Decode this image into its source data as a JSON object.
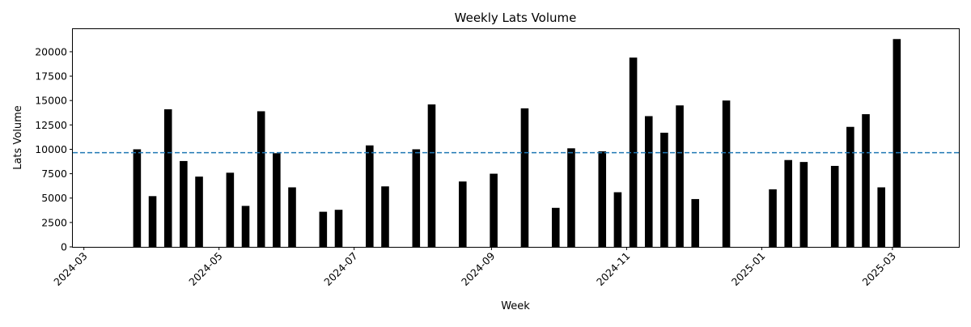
{
  "chart_data": {
    "type": "bar",
    "title": "Weekly Lats Volume",
    "xlabel": "Week",
    "ylabel": "Lats Volume",
    "x_tick_labels": [
      "2024-03",
      "2024-05",
      "2024-07",
      "2024-09",
      "2024-11",
      "2025-01",
      "2025-03"
    ],
    "x_tick_dates": [
      "2024-03-01",
      "2024-05-01",
      "2024-07-01",
      "2024-09-01",
      "2024-11-01",
      "2025-01-01",
      "2025-03-01"
    ],
    "y_ticks": [
      0,
      2500,
      5000,
      7500,
      10000,
      12500,
      15000,
      17500,
      20000
    ],
    "y_tick_labels": [
      "0",
      "2500",
      "5000",
      "7500",
      "10000",
      "12500",
      "15000",
      "17500",
      "20000"
    ],
    "xlim": [
      "2024-02-25",
      "2025-03-31"
    ],
    "ylim": [
      0,
      22400
    ],
    "x_tick_rotation_deg": 45,
    "grid": false,
    "series": [
      {
        "color": "#000000",
        "x": [
          "2024-03-25",
          "2024-04-01",
          "2024-04-08",
          "2024-04-15",
          "2024-04-22",
          "2024-05-06",
          "2024-05-13",
          "2024-05-20",
          "2024-05-27",
          "2024-06-03",
          "2024-06-17",
          "2024-06-24",
          "2024-07-08",
          "2024-07-15",
          "2024-07-29",
          "2024-08-05",
          "2024-08-19",
          "2024-09-02",
          "2024-09-16",
          "2024-09-30",
          "2024-10-07",
          "2024-10-21",
          "2024-10-28",
          "2024-11-04",
          "2024-11-11",
          "2024-11-18",
          "2024-11-25",
          "2024-12-02",
          "2024-12-16",
          "2025-01-06",
          "2025-01-13",
          "2025-01-20",
          "2025-02-03",
          "2025-02-10",
          "2025-02-17",
          "2025-02-24",
          "2025-03-03"
        ],
        "values": [
          10000,
          5200,
          14100,
          8800,
          7200,
          7600,
          4200,
          13900,
          9600,
          6100,
          3600,
          3800,
          10400,
          6200,
          10000,
          14600,
          6700,
          7500,
          14200,
          4000,
          10100,
          9800,
          5600,
          19400,
          13400,
          11700,
          14500,
          4900,
          15000,
          5900,
          8900,
          8700,
          8300,
          12300,
          13600,
          6100,
          21300
        ]
      }
    ],
    "reference_line": {
      "type": "horizontal",
      "value": 9650,
      "color": "#1f77b4",
      "style": "dashed"
    }
  }
}
